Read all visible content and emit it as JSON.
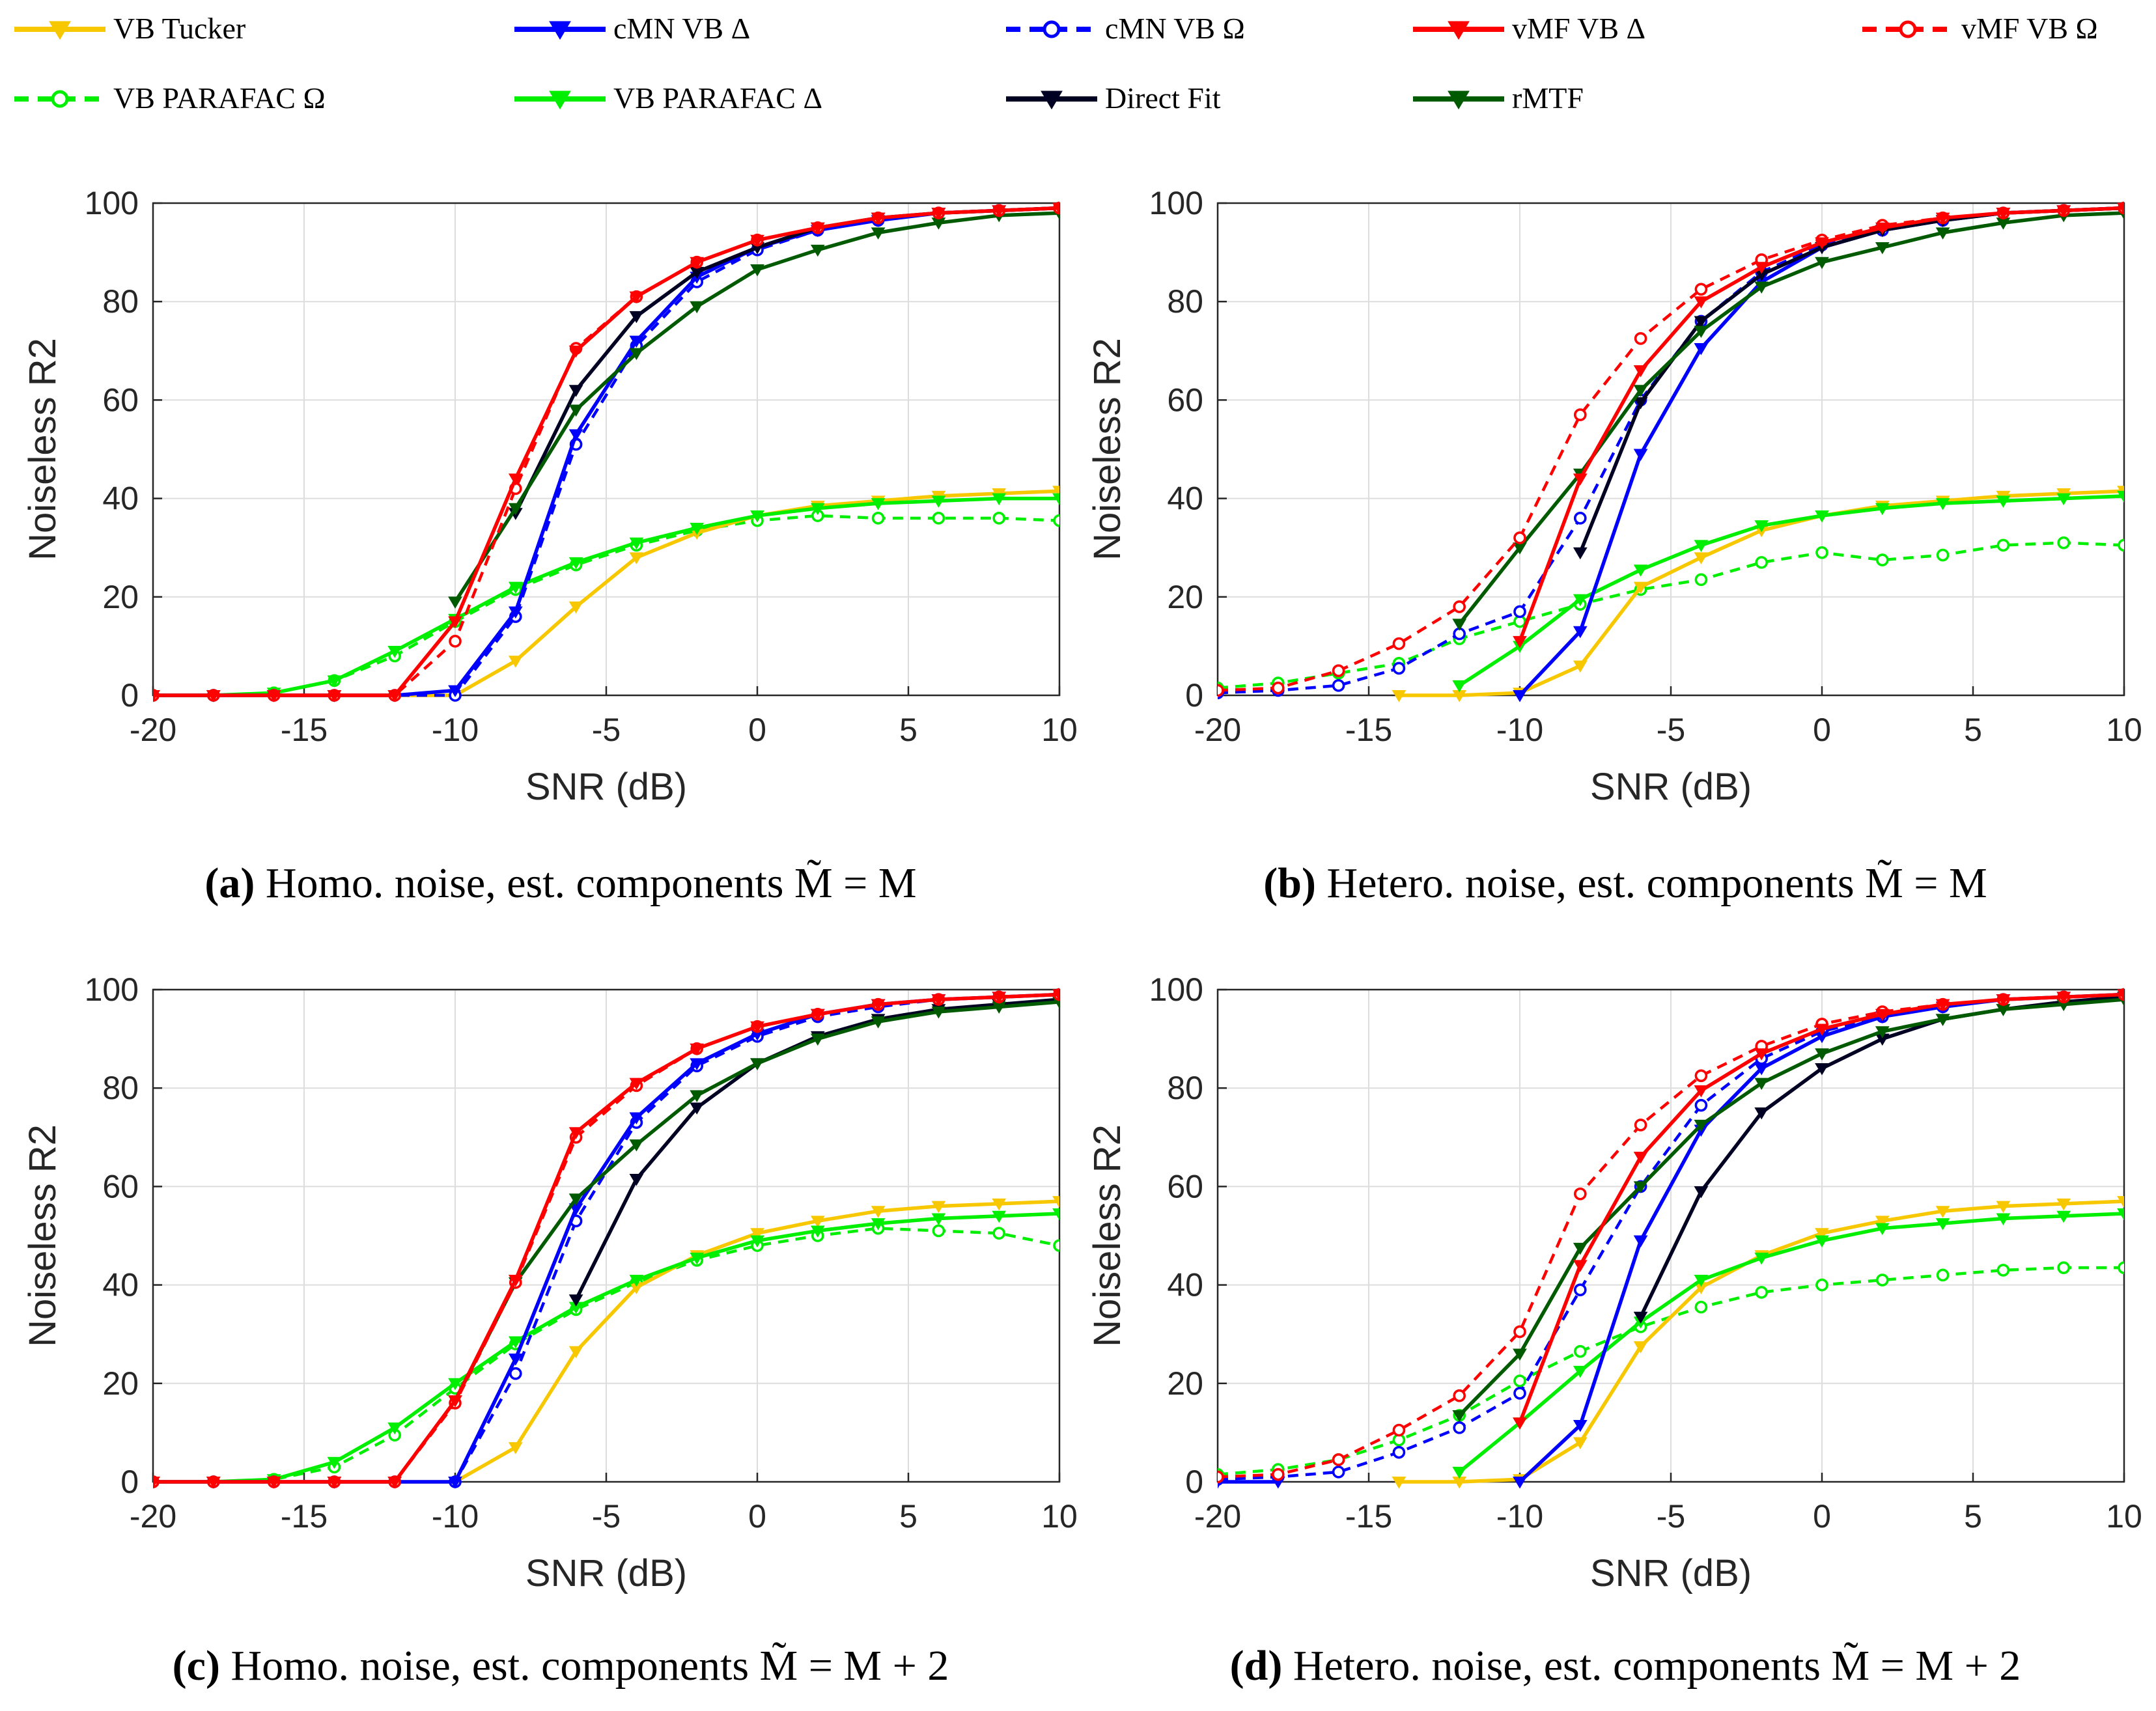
{
  "legend": {
    "entries": [
      {
        "name": "VB Tucker",
        "color": "#f7c700",
        "dash": "solid",
        "marker": "tri-down"
      },
      {
        "name": "cMN VB Δ",
        "color": "#0000ff",
        "dash": "solid",
        "marker": "tri-down"
      },
      {
        "name": "cMN VB Ω",
        "color": "#0000ff",
        "dash": "dashed",
        "marker": "circle"
      },
      {
        "name": "vMF VB Δ",
        "color": "#ff0000",
        "dash": "solid",
        "marker": "tri-down"
      },
      {
        "name": "vMF VB Ω",
        "color": "#ff0000",
        "dash": "dashed",
        "marker": "circle"
      },
      {
        "name": "VB PARAFAC Ω",
        "color": "#00ee00",
        "dash": "dashed",
        "marker": "circle"
      },
      {
        "name": "VB PARAFAC Δ",
        "color": "#00ee00",
        "dash": "solid",
        "marker": "tri-down"
      },
      {
        "name": "Direct Fit",
        "color": "#000022",
        "dash": "solid",
        "marker": "tri-down"
      },
      {
        "name": "rMTF",
        "color": "#005a00",
        "dash": "solid",
        "marker": "tri-down"
      }
    ]
  },
  "chart_data": [
    {
      "type": "line",
      "panel": "a",
      "caption_label": "(a)",
      "caption_text": "Homo. noise, est. components M̃ = M",
      "xlabel": "SNR (dB)",
      "ylabel": "Noiseless R2",
      "xlim": [
        -20,
        10
      ],
      "ylim": [
        0,
        100
      ],
      "xticks": [
        -20,
        -15,
        -10,
        -5,
        0,
        5,
        10
      ],
      "yticks": [
        0,
        20,
        40,
        60,
        80,
        100
      ],
      "grid": true,
      "x": [
        -20,
        -18,
        -16,
        -14,
        -12,
        -10,
        -8,
        -6,
        -4,
        -2,
        0,
        2,
        4,
        6,
        8,
        10
      ],
      "series": [
        {
          "name": "VB Tucker",
          "values": [
            0,
            0,
            0,
            0,
            0,
            0,
            7,
            18,
            28,
            33,
            36.5,
            38.5,
            39.5,
            40.5,
            41,
            41.5
          ]
        },
        {
          "name": "VB PARAFAC Δ",
          "values": [
            0,
            0,
            0.5,
            3,
            9,
            15.5,
            22,
            27,
            31,
            34,
            36.5,
            38,
            39,
            39.5,
            40,
            40
          ]
        },
        {
          "name": "VB PARAFAC Ω",
          "values": [
            0,
            0,
            0.5,
            3,
            8,
            15,
            21.5,
            26.5,
            30.5,
            33.5,
            35.5,
            36.5,
            36,
            36,
            36,
            35.5
          ]
        },
        {
          "name": "cMN VB Δ",
          "values": [
            0,
            0,
            0,
            0,
            0,
            1,
            17,
            53,
            72,
            85,
            91,
            94.5,
            96.5,
            98,
            98.5,
            99
          ]
        },
        {
          "name": "cMN VB Ω",
          "values": [
            0,
            0,
            0,
            0,
            0,
            0,
            16,
            51,
            71,
            84,
            90.5,
            94.5,
            96.5,
            98,
            98.5,
            99
          ]
        },
        {
          "name": "vMF VB Δ",
          "values": [
            0,
            0,
            0,
            0,
            0,
            15,
            44,
            70,
            81,
            88,
            92.5,
            95,
            97,
            98,
            98.5,
            99
          ]
        },
        {
          "name": "vMF VB Ω",
          "values": [
            0,
            0,
            0,
            0,
            0,
            11,
            42,
            70.5,
            81,
            88,
            92.5,
            95,
            97,
            98,
            98.5,
            99
          ]
        },
        {
          "name": "Direct Fit",
          "values": [
            null,
            null,
            null,
            null,
            null,
            null,
            37,
            62,
            77,
            86,
            91,
            95,
            97,
            98,
            98.5,
            99
          ]
        },
        {
          "name": "rMTF",
          "values": [
            null,
            null,
            null,
            null,
            null,
            19,
            38,
            58,
            69.5,
            79,
            86.5,
            90.5,
            94,
            96,
            97.5,
            98
          ]
        }
      ]
    },
    {
      "type": "line",
      "panel": "b",
      "caption_label": "(b)",
      "caption_text": "Hetero. noise, est. components M̃ = M",
      "xlabel": "SNR (dB)",
      "ylabel": "Noiseless R2",
      "xlim": [
        -20,
        10
      ],
      "ylim": [
        0,
        100
      ],
      "xticks": [
        -20,
        -15,
        -10,
        -5,
        0,
        5,
        10
      ],
      "yticks": [
        0,
        20,
        40,
        60,
        80,
        100
      ],
      "grid": true,
      "x": [
        -20,
        -18,
        -16,
        -14,
        -12,
        -10,
        -8,
        -6,
        -4,
        -2,
        0,
        2,
        4,
        6,
        8,
        10
      ],
      "series": [
        {
          "name": "VB Tucker",
          "values": [
            null,
            null,
            null,
            0,
            0,
            0.5,
            6,
            22,
            28,
            33.5,
            36.5,
            38.5,
            39.5,
            40.5,
            41,
            41.5
          ]
        },
        {
          "name": "VB PARAFAC Δ",
          "values": [
            null,
            null,
            null,
            null,
            2,
            10,
            19.5,
            25.5,
            30.5,
            34.5,
            36.5,
            38,
            39,
            39.5,
            40,
            40.5
          ]
        },
        {
          "name": "VB PARAFAC Ω",
          "values": [
            1.5,
            2.5,
            4.5,
            6.5,
            11.5,
            15,
            18.5,
            21.5,
            23.5,
            27,
            29,
            27.5,
            28.5,
            30.5,
            31,
            30.5
          ]
        },
        {
          "name": "cMN VB Δ",
          "values": [
            null,
            null,
            null,
            null,
            null,
            0,
            13,
            49,
            70.5,
            84,
            91,
            94.5,
            96.5,
            98,
            98.5,
            99
          ]
        },
        {
          "name": "cMN VB Ω",
          "values": [
            0.5,
            1,
            2,
            5.5,
            12.5,
            17,
            36,
            60,
            76,
            86,
            91.5,
            94.5,
            96.5,
            98,
            98.5,
            99
          ]
        },
        {
          "name": "vMF VB Δ",
          "values": [
            null,
            null,
            null,
            null,
            null,
            11,
            44,
            66,
            80,
            87,
            92,
            95,
            97,
            98,
            98.5,
            99
          ]
        },
        {
          "name": "vMF VB Ω",
          "values": [
            1,
            1.5,
            5,
            10.5,
            18,
            32,
            57,
            72.5,
            82.5,
            88.5,
            92.5,
            95.5,
            97,
            98,
            98.5,
            99
          ]
        },
        {
          "name": "Direct Fit",
          "values": [
            null,
            null,
            null,
            null,
            null,
            null,
            29,
            59.5,
            76,
            85.5,
            91,
            94.5,
            96.5,
            98,
            98.5,
            99
          ]
        },
        {
          "name": "rMTF",
          "values": [
            null,
            null,
            null,
            null,
            14.5,
            30,
            45,
            62,
            74,
            83,
            88,
            91,
            94,
            96,
            97.5,
            98
          ]
        }
      ]
    },
    {
      "type": "line",
      "panel": "c",
      "caption_label": "(c)",
      "caption_text": "Homo. noise, est. components M̃ = M + 2",
      "xlabel": "SNR (dB)",
      "ylabel": "Noiseless R2",
      "xlim": [
        -20,
        10
      ],
      "ylim": [
        0,
        100
      ],
      "xticks": [
        -20,
        -15,
        -10,
        -5,
        0,
        5,
        10
      ],
      "yticks": [
        0,
        20,
        40,
        60,
        80,
        100
      ],
      "grid": true,
      "x": [
        -20,
        -18,
        -16,
        -14,
        -12,
        -10,
        -8,
        -6,
        -4,
        -2,
        0,
        2,
        4,
        6,
        8,
        10
      ],
      "series": [
        {
          "name": "VB Tucker",
          "values": [
            0,
            0,
            0,
            0,
            0,
            0,
            7,
            26.5,
            39.5,
            46,
            50.5,
            53,
            55,
            56,
            56.5,
            57
          ]
        },
        {
          "name": "VB PARAFAC Δ",
          "values": [
            0,
            0,
            0.5,
            4,
            11,
            20,
            28.5,
            35.5,
            41,
            45.5,
            49,
            51,
            52.5,
            53.5,
            54,
            54.5
          ]
        },
        {
          "name": "VB PARAFAC Ω",
          "values": [
            0,
            0,
            0.5,
            3,
            9.5,
            19,
            28,
            35,
            40.5,
            45,
            48,
            50,
            51.5,
            51,
            50.5,
            48
          ]
        },
        {
          "name": "cMN VB Δ",
          "values": [
            0,
            0,
            0,
            0,
            0,
            0,
            25,
            55.5,
            74,
            85,
            91,
            95,
            97,
            98,
            98.5,
            99
          ]
        },
        {
          "name": "cMN VB Ω",
          "values": [
            0,
            0,
            0,
            0,
            0,
            0,
            22,
            53,
            73,
            84.5,
            90.5,
            94.5,
            96.5,
            98,
            98.5,
            99
          ]
        },
        {
          "name": "vMF VB Δ",
          "values": [
            0,
            0,
            0,
            0,
            0,
            16.5,
            41,
            71,
            81,
            88,
            92.5,
            95,
            97,
            98,
            98.5,
            99
          ]
        },
        {
          "name": "vMF VB Ω",
          "values": [
            0,
            0,
            0,
            0,
            0,
            16,
            40.5,
            70,
            80.5,
            88,
            92.5,
            95,
            97,
            98,
            98.5,
            99
          ]
        },
        {
          "name": "Direct Fit",
          "values": [
            null,
            null,
            null,
            null,
            null,
            null,
            null,
            37,
            61.5,
            76,
            85,
            90.5,
            94,
            96,
            97,
            98
          ]
        },
        {
          "name": "rMTF",
          "values": [
            null,
            null,
            null,
            null,
            null,
            16.5,
            40.5,
            57.5,
            68.5,
            78.5,
            85,
            90,
            93.5,
            95.5,
            96.5,
            97.5
          ]
        }
      ]
    },
    {
      "type": "line",
      "panel": "d",
      "caption_label": "(d)",
      "caption_text": "Hetero. noise, est. components M̃ = M + 2",
      "xlabel": "SNR (dB)",
      "ylabel": "Noiseless R2",
      "xlim": [
        -20,
        10
      ],
      "ylim": [
        0,
        100
      ],
      "xticks": [
        -20,
        -15,
        -10,
        -5,
        0,
        5,
        10
      ],
      "yticks": [
        0,
        20,
        40,
        60,
        80,
        100
      ],
      "grid": true,
      "x": [
        -20,
        -18,
        -16,
        -14,
        -12,
        -10,
        -8,
        -6,
        -4,
        -2,
        0,
        2,
        4,
        6,
        8,
        10
      ],
      "series": [
        {
          "name": "VB Tucker",
          "values": [
            null,
            null,
            null,
            0,
            0,
            0.5,
            8,
            27.5,
            39.5,
            46,
            50.5,
            53,
            55,
            56,
            56.5,
            57
          ]
        },
        {
          "name": "VB PARAFAC Δ",
          "values": [
            null,
            null,
            null,
            null,
            2,
            12,
            22.5,
            32.5,
            41,
            45.5,
            49,
            51.5,
            52.5,
            53.5,
            54,
            54.5
          ]
        },
        {
          "name": "VB PARAFAC Ω",
          "values": [
            1.5,
            2.5,
            4.5,
            8.5,
            13.5,
            20.5,
            26.5,
            31.5,
            35.5,
            38.5,
            40,
            41,
            42,
            43,
            43.5,
            43.5
          ]
        },
        {
          "name": "cMN VB Δ",
          "values": [
            0,
            0,
            null,
            null,
            null,
            0,
            11.5,
            49,
            71.5,
            84,
            90.5,
            94.5,
            96.5,
            98,
            98.5,
            99
          ]
        },
        {
          "name": "cMN VB Ω",
          "values": [
            0.5,
            1,
            2,
            6,
            11,
            18,
            39,
            60,
            76.5,
            86,
            91.5,
            94.5,
            96.5,
            98,
            98.5,
            99
          ]
        },
        {
          "name": "vMF VB Δ",
          "values": [
            null,
            null,
            null,
            null,
            null,
            12,
            44,
            66,
            79.5,
            87,
            92,
            95,
            97,
            98,
            98.5,
            99
          ]
        },
        {
          "name": "vMF VB Ω",
          "values": [
            1,
            1.5,
            4.5,
            10.5,
            17.5,
            30.5,
            58.5,
            72.5,
            82.5,
            88.5,
            93,
            95.5,
            97,
            98,
            98.5,
            99
          ]
        },
        {
          "name": "Direct Fit",
          "values": [
            null,
            null,
            null,
            null,
            null,
            null,
            null,
            33.5,
            59,
            75,
            84,
            90,
            94,
            96,
            97.5,
            98.5
          ]
        },
        {
          "name": "rMTF",
          "values": [
            null,
            null,
            null,
            null,
            13.5,
            26,
            47.5,
            60,
            72.5,
            81,
            87,
            91.5,
            94,
            96,
            97,
            98
          ]
        }
      ]
    }
  ]
}
